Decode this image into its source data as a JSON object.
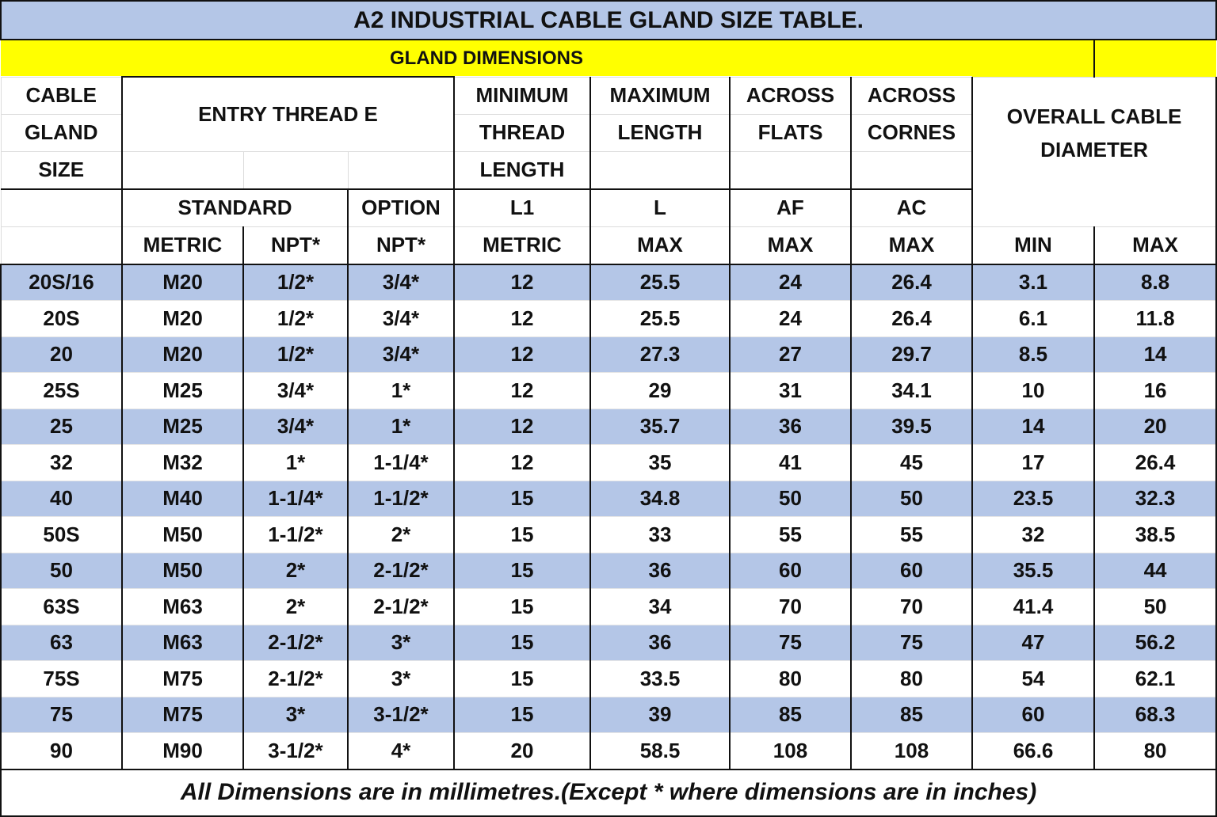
{
  "title": "A2 INDUSTRIAL CABLE GLAND SIZE TABLE.",
  "section_label": "GLAND DIMENSIONS",
  "header": {
    "cable_gland_size": [
      "CABLE",
      "GLAND",
      "SIZE"
    ],
    "entry_thread": "ENTRY THREAD E",
    "min_thread_length": [
      "MINIMUM",
      "THREAD",
      "LENGTH"
    ],
    "max_length": [
      "MAXIMUM",
      "LENGTH"
    ],
    "across_flats": [
      "ACROSS",
      "FLATS"
    ],
    "across_corners": [
      "ACROSS",
      "CORNES"
    ],
    "overall_cable_diameter": [
      "OVERALL CABLE",
      "DIAMETER"
    ],
    "standard": "STANDARD",
    "option": "OPTION",
    "codes": [
      "L1",
      "L",
      "AF",
      "AC"
    ],
    "units": [
      "METRIC",
      "NPT*",
      "NPT*",
      "METRIC",
      "MAX",
      "MAX",
      "MAX",
      "MIN",
      "MAX"
    ]
  },
  "colors": {
    "title_bg": "#b4c6e7",
    "section_bg": "#ffff00",
    "stripe": "#b4c6e7"
  },
  "rows": [
    [
      "20S/16",
      "M20",
      "1/2*",
      "3/4*",
      "12",
      "25.5",
      "24",
      "26.4",
      "3.1",
      "8.8"
    ],
    [
      "20S",
      "M20",
      "1/2*",
      "3/4*",
      "12",
      "25.5",
      "24",
      "26.4",
      "6.1",
      "11.8"
    ],
    [
      "20",
      "M20",
      "1/2*",
      "3/4*",
      "12",
      "27.3",
      "27",
      "29.7",
      "8.5",
      "14"
    ],
    [
      "25S",
      "M25",
      "3/4*",
      "1*",
      "12",
      "29",
      "31",
      "34.1",
      "10",
      "16"
    ],
    [
      "25",
      "M25",
      "3/4*",
      "1*",
      "12",
      "35.7",
      "36",
      "39.5",
      "14",
      "20"
    ],
    [
      "32",
      "M32",
      "1*",
      "1-1/4*",
      "12",
      "35",
      "41",
      "45",
      "17",
      "26.4"
    ],
    [
      "40",
      "M40",
      "1-1/4*",
      "1-1/2*",
      "15",
      "34.8",
      "50",
      "50",
      "23.5",
      "32.3"
    ],
    [
      "50S",
      "M50",
      "1-1/2*",
      "2*",
      "15",
      "33",
      "55",
      "55",
      "32",
      "38.5"
    ],
    [
      "50",
      "M50",
      "2*",
      "2-1/2*",
      "15",
      "36",
      "60",
      "60",
      "35.5",
      "44"
    ],
    [
      "63S",
      "M63",
      "2*",
      "2-1/2*",
      "15",
      "34",
      "70",
      "70",
      "41.4",
      "50"
    ],
    [
      "63",
      "M63",
      "2-1/2*",
      "3*",
      "15",
      "36",
      "75",
      "75",
      "47",
      "56.2"
    ],
    [
      "75S",
      "M75",
      "2-1/2*",
      "3*",
      "15",
      "33.5",
      "80",
      "80",
      "54",
      "62.1"
    ],
    [
      "75",
      "M75",
      "3*",
      "3-1/2*",
      "15",
      "39",
      "85",
      "85",
      "60",
      "68.3"
    ],
    [
      "90",
      "M90",
      "3-1/2*",
      "4*",
      "20",
      "58.5",
      "108",
      "108",
      "66.6",
      "80"
    ]
  ],
  "footer": "All Dimensions are in millimetres.(Except * where dimensions are in inches)"
}
